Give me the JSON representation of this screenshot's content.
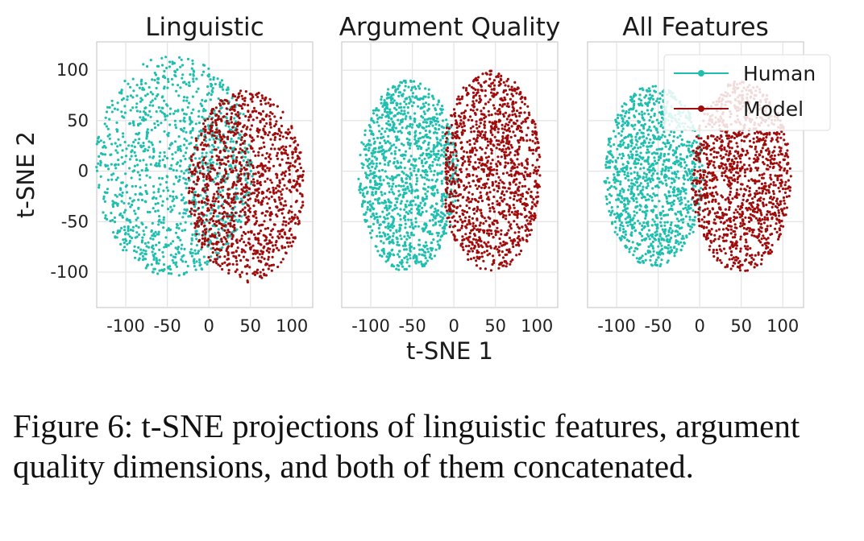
{
  "chart_data": [
    {
      "type": "scatter",
      "title": "Linguistic",
      "xlabel": "",
      "ylabel": "t-SNE 2",
      "xlim": [
        -135,
        125
      ],
      "ylim": [
        -135,
        128
      ],
      "xticks": [
        -100,
        -50,
        0,
        50,
        100
      ],
      "yticks": [
        100,
        50,
        0,
        -50,
        -100
      ],
      "grid": true,
      "series": [
        {
          "name": "Human",
          "color": "#1fbfb0",
          "region": {
            "cx": -42,
            "cy": 5,
            "rx": 95,
            "ry": 110,
            "split": "left"
          }
        },
        {
          "name": "Model",
          "color": "#a00c0c",
          "region": {
            "cx": 45,
            "cy": -15,
            "rx": 70,
            "ry": 95,
            "split": "right"
          }
        }
      ]
    },
    {
      "type": "scatter",
      "title": "Argument Quality",
      "xlabel": "t-SNE 1",
      "ylabel": "",
      "xlim": [
        -135,
        125
      ],
      "ylim": [
        -135,
        128
      ],
      "xticks": [
        -100,
        -50,
        0,
        50,
        100
      ],
      "yticks": [
        100,
        50,
        0,
        -50,
        -100
      ],
      "grid": true,
      "series": [
        {
          "name": "Human",
          "color": "#1fbfb0",
          "region": {
            "cx": -55,
            "cy": -5,
            "rx": 60,
            "ry": 95,
            "split": "left"
          }
        },
        {
          "name": "Model",
          "color": "#a00c0c",
          "region": {
            "cx": 45,
            "cy": 0,
            "rx": 60,
            "ry": 100,
            "split": "right"
          }
        }
      ]
    },
    {
      "type": "scatter",
      "title": "All Features",
      "xlabel": "",
      "ylabel": "",
      "xlim": [
        -135,
        125
      ],
      "ylim": [
        -135,
        128
      ],
      "xticks": [
        -100,
        -50,
        0,
        50,
        100
      ],
      "yticks": [
        100,
        50,
        0,
        -50,
        -100
      ],
      "grid": true,
      "legend": {
        "placement": "top-right",
        "entries": [
          "Human",
          "Model"
        ]
      },
      "series": [
        {
          "name": "Human",
          "color": "#1fbfb0",
          "region": {
            "cx": -55,
            "cy": -5,
            "rx": 60,
            "ry": 90,
            "split": "left"
          }
        },
        {
          "name": "Model",
          "color": "#a00c0c",
          "region": {
            "cx": 50,
            "cy": -5,
            "rx": 60,
            "ry": 95,
            "split": "right"
          }
        }
      ]
    }
  ],
  "caption": "Figure 6: t-SNE projections of linguistic features, argument quality dimensions, and both of them concatenated."
}
